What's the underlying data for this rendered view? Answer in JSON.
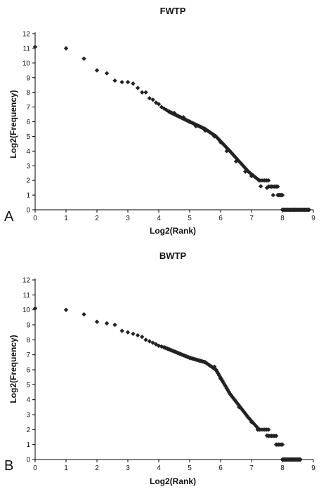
{
  "chart_data": [
    {
      "type": "scatter",
      "panel_label": "A",
      "title": "FWTP",
      "xlabel": "Log2(Rank)",
      "ylabel": "Log2(Frequency)",
      "xlim": [
        0,
        9
      ],
      "ylim": [
        0,
        12
      ],
      "xticks": [
        "0",
        "1",
        "2",
        "3",
        "4",
        "5",
        "6",
        "7",
        "8",
        "9"
      ],
      "yticks": [
        "0",
        "1",
        "2",
        "3",
        "4",
        "5",
        "6",
        "7",
        "8",
        "9",
        "10",
        "11",
        "12"
      ],
      "marker": "diamond",
      "color": "#222222",
      "key_points": [
        [
          0,
          11.1
        ],
        [
          1,
          11.0
        ],
        [
          1.58,
          10.3
        ],
        [
          2,
          9.5
        ],
        [
          2.32,
          9.3
        ],
        [
          2.58,
          8.8
        ],
        [
          2.81,
          8.7
        ],
        [
          3,
          8.7
        ],
        [
          3.17,
          8.6
        ],
        [
          3.32,
          8.3
        ],
        [
          3.46,
          8.0
        ],
        [
          3.58,
          8.0
        ],
        [
          3.7,
          7.6
        ],
        [
          3.81,
          7.5
        ],
        [
          3.91,
          7.3
        ],
        [
          4,
          7.2
        ],
        [
          4.09,
          7.0
        ],
        [
          4.17,
          6.9
        ],
        [
          4.25,
          6.8
        ],
        [
          4.32,
          6.7
        ],
        [
          4.5,
          6.6
        ],
        [
          4.8,
          6.3
        ],
        [
          5.0,
          6.0
        ],
        [
          5.2,
          5.7
        ],
        [
          5.5,
          5.4
        ],
        [
          5.8,
          5.0
        ],
        [
          6.0,
          4.6
        ],
        [
          6.2,
          4.0
        ],
        [
          6.5,
          3.3
        ],
        [
          6.8,
          2.6
        ],
        [
          7.0,
          2.3
        ],
        [
          7.3,
          1.6
        ],
        [
          7.5,
          1.5
        ],
        [
          7.7,
          1.0
        ],
        [
          7.9,
          1.0
        ],
        [
          8.0,
          0
        ],
        [
          8.4,
          0
        ],
        [
          8.86,
          0
        ]
      ],
      "runs": [
        [
          4.32,
          5.0,
          6.7,
          6.0,
          22
        ],
        [
          5.0,
          5.5,
          6.0,
          5.5,
          14
        ],
        [
          5.5,
          5.85,
          5.5,
          5.0,
          12
        ],
        [
          5.85,
          6.3,
          5.0,
          4.0,
          14
        ],
        [
          6.3,
          6.9,
          4.0,
          2.6,
          14
        ],
        [
          6.9,
          7.25,
          2.6,
          2.0,
          8
        ],
        [
          7.25,
          7.55,
          2.0,
          2.0,
          6
        ],
        [
          7.55,
          7.85,
          1.58,
          1.58,
          7
        ],
        [
          7.85,
          8.0,
          1.0,
          1.0,
          6
        ],
        [
          8.0,
          8.86,
          0,
          0,
          30
        ]
      ]
    },
    {
      "type": "scatter",
      "panel_label": "B",
      "title": "BWTP",
      "xlabel": "Log2(Rank)",
      "ylabel": "Log2(Frequency)",
      "xlim": [
        0,
        9
      ],
      "ylim": [
        0,
        12
      ],
      "xticks": [
        "0",
        "1",
        "2",
        "3",
        "4",
        "5",
        "6",
        "7",
        "8",
        "9"
      ],
      "yticks": [
        "0",
        "1",
        "2",
        "3",
        "4",
        "5",
        "6",
        "7",
        "8",
        "9",
        "10",
        "11",
        "12"
      ],
      "marker": "diamond",
      "color": "#222222",
      "key_points": [
        [
          0,
          10.1
        ],
        [
          1,
          10.0
        ],
        [
          1.58,
          9.7
        ],
        [
          2,
          9.2
        ],
        [
          2.32,
          9.1
        ],
        [
          2.58,
          9.0
        ],
        [
          2.81,
          8.6
        ],
        [
          3,
          8.5
        ],
        [
          3.17,
          8.4
        ],
        [
          3.32,
          8.3
        ],
        [
          3.46,
          8.2
        ],
        [
          3.58,
          8.0
        ],
        [
          3.7,
          7.9
        ],
        [
          3.81,
          7.8
        ],
        [
          3.91,
          7.7
        ],
        [
          4,
          7.6
        ],
        [
          4.09,
          7.55
        ],
        [
          4.17,
          7.5
        ],
        [
          5.0,
          6.8
        ],
        [
          5.5,
          6.5
        ],
        [
          5.8,
          6.2
        ],
        [
          6.0,
          5.4
        ],
        [
          6.3,
          4.4
        ],
        [
          6.6,
          3.5
        ],
        [
          7.0,
          2.5
        ],
        [
          7.2,
          2.0
        ],
        [
          7.5,
          1.6
        ],
        [
          7.8,
          1.0
        ],
        [
          8.0,
          0
        ],
        [
          8.58,
          0
        ]
      ],
      "runs": [
        [
          4.17,
          5.0,
          7.5,
          6.8,
          24
        ],
        [
          5.0,
          5.5,
          6.8,
          6.5,
          14
        ],
        [
          5.5,
          5.85,
          6.5,
          6.0,
          10
        ],
        [
          5.85,
          6.3,
          6.0,
          4.4,
          14
        ],
        [
          6.3,
          6.9,
          4.4,
          2.8,
          16
        ],
        [
          6.9,
          7.25,
          2.8,
          2.0,
          8
        ],
        [
          7.25,
          7.55,
          2.0,
          2.0,
          6
        ],
        [
          7.55,
          7.8,
          1.58,
          1.58,
          6
        ],
        [
          7.8,
          8.0,
          1.0,
          1.0,
          6
        ],
        [
          8.0,
          8.58,
          0,
          0,
          24
        ]
      ]
    }
  ]
}
